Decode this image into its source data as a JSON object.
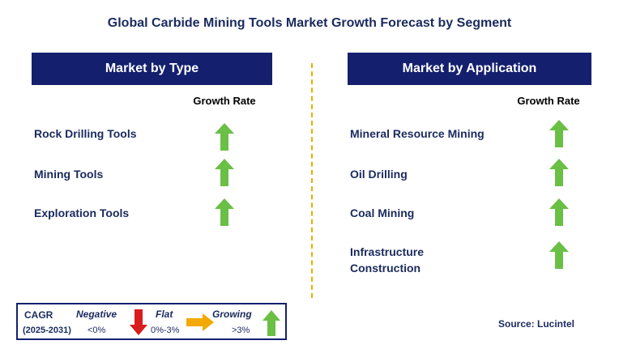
{
  "title": "Global Carbide Mining Tools Market Growth Forecast by Segment",
  "left_panel": {
    "header": "Market by Type",
    "column_label": "Growth Rate",
    "rows": [
      {
        "label": "Rock Drilling Tools",
        "trend": "growing"
      },
      {
        "label": "Mining Tools",
        "trend": "growing"
      },
      {
        "label": "Exploration Tools",
        "trend": "growing"
      }
    ]
  },
  "right_panel": {
    "header": "Market by Application",
    "column_label": "Growth Rate",
    "rows": [
      {
        "label": "Mineral Resource Mining",
        "trend": "growing"
      },
      {
        "label": "Oil Drilling",
        "trend": "growing"
      },
      {
        "label": "Coal Mining",
        "trend": "growing"
      },
      {
        "label": "Infrastructure\nConstruction",
        "label_line1": "Infrastructure",
        "label_line2": "Construction",
        "trend": "growing"
      }
    ]
  },
  "legend": {
    "cagr_label": "CAGR",
    "period": "(2025-2031)",
    "negative_label": "Negative",
    "negative_value": "<0%",
    "flat_label": "Flat",
    "flat_value": "0%-3%",
    "growing_label": "Growing",
    "growing_value": ">3%"
  },
  "source": "Source: Lucintel",
  "colors": {
    "header_bg": "#14206e",
    "up_arrow": "#6abf45",
    "down_arrow": "#d91c1c",
    "flat_arrow": "#f2a900",
    "divider": "#f2a900"
  },
  "icons": {
    "up": "arrow-up-icon",
    "down": "arrow-down-icon",
    "flat": "arrow-right-icon"
  }
}
